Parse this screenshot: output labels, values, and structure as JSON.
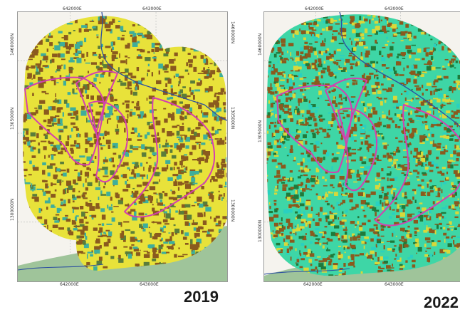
{
  "maps": [
    {
      "year": "2019",
      "top_ticks": [
        "642000E",
        "643000E"
      ],
      "bottom_ticks": [
        "642000E",
        "643000E"
      ],
      "left_ticks": [
        "1460000N",
        "1305000N",
        "1300000N"
      ],
      "right_ticks": [
        "1460000N",
        "1305000N",
        "1300000N"
      ],
      "base_color": "#e8e23a",
      "patch_colors": [
        "#8a5a1e",
        "#3fae9a",
        "#5a7d3a"
      ]
    },
    {
      "year": "2022",
      "top_ticks": [
        "642000E",
        "643000E"
      ],
      "bottom_ticks": [
        "642000E",
        "643000E"
      ],
      "left_ticks": [
        "1460000N",
        "1305000N",
        "1300000N"
      ],
      "right_ticks": [],
      "base_color": "#3ed6a6",
      "patch_colors": [
        "#8a5a1e",
        "#d8d83a",
        "#1f7a3a",
        "#2ad0c0"
      ]
    }
  ],
  "colors": {
    "boundary": "#d43fb0",
    "river": "#2c4fa0",
    "sea": "#9fc49a"
  }
}
